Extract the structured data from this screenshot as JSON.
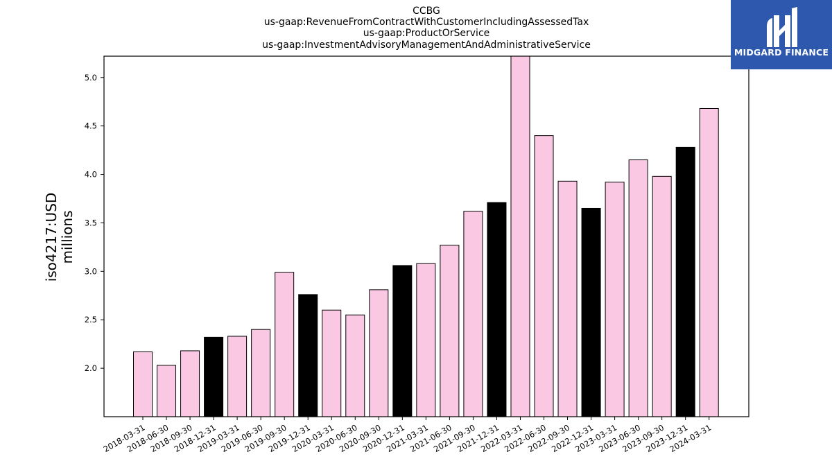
{
  "chart_data": {
    "type": "bar",
    "title_lines": [
      "CCBG",
      "us-gaap:RevenueFromContractWithCustomerIncludingAssessedTax",
      "us-gaap:ProductOrService",
      "us-gaap:InvestmentAdvisoryManagementAndAdministrativeService"
    ],
    "ylabel_lines": [
      "iso4217:USD",
      "millions"
    ],
    "xlabel": "",
    "categories": [
      "2018-03-31",
      "2018-06-30",
      "2018-09-30",
      "2018-12-31",
      "2019-03-31",
      "2019-06-30",
      "2019-09-30",
      "2019-12-31",
      "2020-03-31",
      "2020-06-30",
      "2020-09-30",
      "2020-12-31",
      "2021-03-31",
      "2021-06-30",
      "2021-09-30",
      "2021-12-31",
      "2022-03-31",
      "2022-06-30",
      "2022-09-30",
      "2022-12-31",
      "2023-03-31",
      "2023-06-30",
      "2023-09-30",
      "2023-12-31",
      "2024-03-31"
    ],
    "values": [
      2.17,
      2.03,
      2.18,
      2.32,
      2.33,
      2.4,
      2.99,
      2.76,
      2.6,
      2.55,
      2.81,
      3.06,
      3.08,
      3.27,
      3.62,
      3.71,
      5.22,
      4.4,
      3.93,
      3.65,
      3.92,
      4.15,
      3.98,
      4.28,
      4.68
    ],
    "highlight": [
      false,
      false,
      false,
      true,
      false,
      false,
      false,
      true,
      false,
      false,
      false,
      true,
      false,
      false,
      false,
      true,
      false,
      false,
      false,
      true,
      false,
      false,
      false,
      true,
      false
    ],
    "ylim": [
      1.5,
      5.22
    ],
    "yticks": [
      "2.0",
      "2.5",
      "3.0",
      "3.5",
      "4.0",
      "4.5",
      "5.0"
    ],
    "colors": {
      "bar": "#fbc8e3",
      "highlight": "#000000",
      "edge": "#000000"
    },
    "grid": false
  },
  "logo": {
    "text": "MIDGARD FINANCE",
    "background": "#2d58ad"
  }
}
